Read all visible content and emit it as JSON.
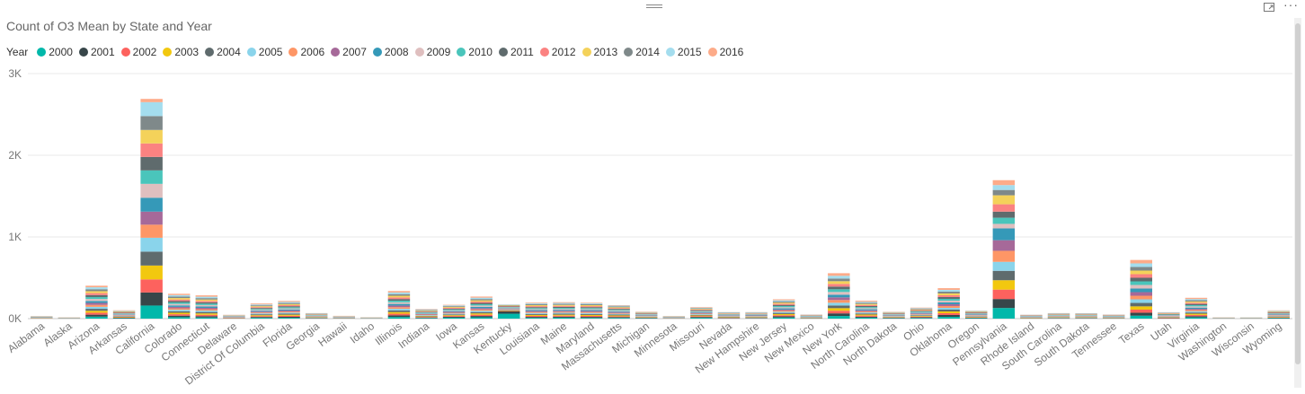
{
  "header": {
    "title": "Count of O3 Mean by State and Year",
    "more_label": "···"
  },
  "legend": {
    "title": "Year",
    "items": [
      {
        "label": "2000",
        "color": "#01B8AA"
      },
      {
        "label": "2001",
        "color": "#374649"
      },
      {
        "label": "2002",
        "color": "#FD625E"
      },
      {
        "label": "2003",
        "color": "#F2C80F"
      },
      {
        "label": "2004",
        "color": "#5F6B6D"
      },
      {
        "label": "2005",
        "color": "#8AD4EB"
      },
      {
        "label": "2006",
        "color": "#FE9666"
      },
      {
        "label": "2007",
        "color": "#A66999"
      },
      {
        "label": "2008",
        "color": "#3599B8"
      },
      {
        "label": "2009",
        "color": "#DFBFBF"
      },
      {
        "label": "2010",
        "color": "#4AC5BB"
      },
      {
        "label": "2011",
        "color": "#5F6B6D"
      },
      {
        "label": "2012",
        "color": "#FB8281"
      },
      {
        "label": "2013",
        "color": "#F4D25A"
      },
      {
        "label": "2014",
        "color": "#7F898A"
      },
      {
        "label": "2015",
        "color": "#A4DDEE"
      },
      {
        "label": "2016",
        "color": "#FDAB89"
      }
    ]
  },
  "chart_data": {
    "type": "bar",
    "stacked": true,
    "title": "Count of O3 Mean by State and Year",
    "xlabel": "",
    "ylabel": "",
    "ylim": [
      0,
      3000
    ],
    "yticks": [
      0,
      1000,
      2000,
      3000
    ],
    "ytick_labels": [
      "0K",
      "1K",
      "2K",
      "3K"
    ],
    "grid": true,
    "legend_position": "top-left",
    "categories": [
      "Alabama",
      "Alaska",
      "Arizona",
      "Arkansas",
      "California",
      "Colorado",
      "Connecticut",
      "Delaware",
      "District Of Columbia",
      "Florida",
      "Georgia",
      "Hawaii",
      "Idaho",
      "Illinois",
      "Indiana",
      "Iowa",
      "Kansas",
      "Kentucky",
      "Louisiana",
      "Maine",
      "Maryland",
      "Massachusetts",
      "Michigan",
      "Minnesota",
      "Missouri",
      "Nevada",
      "New Hampshire",
      "New Jersey",
      "New Mexico",
      "New York",
      "North Carolina",
      "North Dakota",
      "Ohio",
      "Oklahoma",
      "Oregon",
      "Pennsylvania",
      "Rhode Island",
      "South Carolina",
      "South Dakota",
      "Tennessee",
      "Texas",
      "Utah",
      "Virginia",
      "Washington",
      "Wisconsin",
      "Wyoming"
    ],
    "series": [
      {
        "name": "2000",
        "values": [
          0,
          0,
          24,
          5,
          160,
          18,
          14,
          0,
          10,
          10,
          4,
          2,
          1,
          20,
          7,
          12,
          16,
          60,
          10,
          12,
          9,
          9,
          5,
          1,
          10,
          3,
          4,
          14,
          3,
          32,
          12,
          5,
          8,
          22,
          6,
          130,
          2,
          4,
          4,
          3,
          36,
          0,
          15,
          0,
          0,
          6
        ]
      },
      {
        "name": "2001",
        "values": [
          2,
          1,
          24,
          6,
          160,
          18,
          16,
          3,
          10,
          12,
          4,
          2,
          1,
          20,
          7,
          10,
          16,
          28,
          11,
          12,
          12,
          10,
          5,
          2,
          10,
          4,
          4,
          14,
          3,
          32,
          12,
          5,
          8,
          22,
          6,
          110,
          3,
          4,
          4,
          3,
          36,
          5,
          15,
          1,
          1,
          6
        ]
      },
      {
        "name": "2002",
        "values": [
          2,
          1,
          24,
          6,
          160,
          18,
          17,
          3,
          11,
          13,
          4,
          2,
          1,
          20,
          7,
          10,
          16,
          6,
          12,
          12,
          12,
          10,
          5,
          2,
          10,
          5,
          5,
          14,
          3,
          32,
          13,
          5,
          8,
          22,
          6,
          115,
          3,
          4,
          4,
          3,
          38,
          5,
          15,
          1,
          1,
          6
        ]
      },
      {
        "name": "2003",
        "values": [
          2,
          1,
          24,
          6,
          170,
          18,
          17,
          3,
          11,
          13,
          4,
          2,
          1,
          20,
          7,
          10,
          16,
          6,
          12,
          12,
          12,
          10,
          5,
          2,
          8,
          5,
          5,
          14,
          3,
          32,
          13,
          5,
          8,
          22,
          6,
          115,
          3,
          4,
          4,
          3,
          40,
          5,
          15,
          1,
          1,
          6
        ]
      },
      {
        "name": "2004",
        "values": [
          2,
          1,
          24,
          6,
          170,
          18,
          17,
          3,
          11,
          13,
          4,
          2,
          1,
          20,
          7,
          10,
          16,
          6,
          12,
          12,
          12,
          10,
          5,
          2,
          8,
          5,
          5,
          14,
          3,
          33,
          13,
          5,
          8,
          22,
          6,
          115,
          3,
          4,
          4,
          3,
          42,
          5,
          15,
          1,
          1,
          6
        ]
      },
      {
        "name": "2005",
        "values": [
          2,
          1,
          24,
          6,
          170,
          18,
          17,
          3,
          11,
          13,
          4,
          2,
          1,
          20,
          7,
          10,
          16,
          6,
          12,
          12,
          12,
          10,
          5,
          2,
          8,
          5,
          5,
          14,
          3,
          33,
          13,
          5,
          8,
          22,
          6,
          110,
          3,
          4,
          4,
          3,
          44,
          5,
          15,
          1,
          1,
          6
        ]
      },
      {
        "name": "2006",
        "values": [
          2,
          1,
          24,
          6,
          160,
          18,
          17,
          3,
          11,
          13,
          4,
          2,
          1,
          20,
          7,
          10,
          16,
          6,
          12,
          12,
          12,
          10,
          5,
          2,
          8,
          5,
          5,
          14,
          3,
          33,
          13,
          5,
          8,
          22,
          6,
          135,
          3,
          4,
          4,
          3,
          44,
          5,
          15,
          1,
          1,
          6
        ]
      },
      {
        "name": "2007",
        "values": [
          2,
          1,
          24,
          6,
          160,
          18,
          17,
          3,
          11,
          13,
          4,
          2,
          1,
          20,
          7,
          10,
          16,
          6,
          12,
          12,
          12,
          10,
          5,
          2,
          8,
          5,
          5,
          14,
          3,
          33,
          13,
          5,
          8,
          22,
          6,
          130,
          3,
          4,
          4,
          3,
          44,
          5,
          15,
          1,
          1,
          6
        ]
      },
      {
        "name": "2008",
        "values": [
          2,
          1,
          24,
          6,
          170,
          18,
          17,
          3,
          11,
          13,
          4,
          2,
          1,
          20,
          7,
          10,
          16,
          6,
          12,
          12,
          12,
          10,
          5,
          2,
          8,
          5,
          5,
          14,
          3,
          33,
          13,
          5,
          8,
          22,
          6,
          145,
          3,
          4,
          4,
          3,
          44,
          5,
          15,
          1,
          1,
          6
        ]
      },
      {
        "name": "2009",
        "values": [
          2,
          1,
          24,
          6,
          170,
          18,
          17,
          3,
          11,
          13,
          4,
          2,
          1,
          20,
          7,
          10,
          16,
          6,
          12,
          12,
          12,
          10,
          5,
          2,
          8,
          5,
          5,
          14,
          3,
          33,
          13,
          5,
          8,
          22,
          6,
          55,
          3,
          4,
          4,
          3,
          44,
          5,
          15,
          1,
          1,
          6
        ]
      },
      {
        "name": "2010",
        "values": [
          2,
          1,
          24,
          6,
          165,
          18,
          17,
          3,
          11,
          13,
          4,
          2,
          1,
          20,
          7,
          10,
          16,
          6,
          12,
          12,
          12,
          10,
          5,
          2,
          8,
          5,
          5,
          14,
          3,
          33,
          13,
          5,
          8,
          22,
          6,
          75,
          3,
          4,
          4,
          3,
          44,
          5,
          15,
          1,
          1,
          6
        ]
      },
      {
        "name": "2011",
        "values": [
          2,
          1,
          24,
          6,
          165,
          18,
          17,
          3,
          11,
          13,
          4,
          2,
          1,
          20,
          7,
          10,
          16,
          6,
          12,
          12,
          12,
          10,
          5,
          2,
          8,
          5,
          5,
          14,
          3,
          33,
          13,
          5,
          8,
          22,
          6,
          75,
          3,
          4,
          4,
          3,
          44,
          5,
          15,
          1,
          1,
          6
        ]
      },
      {
        "name": "2012",
        "values": [
          2,
          1,
          24,
          6,
          165,
          18,
          17,
          3,
          11,
          13,
          4,
          2,
          1,
          20,
          7,
          10,
          16,
          6,
          12,
          12,
          12,
          10,
          5,
          2,
          8,
          5,
          5,
          14,
          3,
          33,
          13,
          5,
          8,
          22,
          6,
          90,
          3,
          4,
          4,
          3,
          44,
          5,
          15,
          1,
          1,
          6
        ]
      },
      {
        "name": "2013",
        "values": [
          2,
          1,
          24,
          6,
          165,
          18,
          17,
          3,
          11,
          13,
          4,
          2,
          1,
          20,
          7,
          10,
          16,
          6,
          12,
          12,
          12,
          10,
          5,
          2,
          8,
          5,
          5,
          14,
          3,
          33,
          13,
          5,
          8,
          22,
          6,
          110,
          3,
          4,
          4,
          3,
          44,
          5,
          15,
          1,
          1,
          6
        ]
      },
      {
        "name": "2014",
        "values": [
          2,
          1,
          24,
          6,
          170,
          18,
          17,
          3,
          11,
          13,
          4,
          2,
          1,
          20,
          7,
          10,
          16,
          6,
          12,
          12,
          12,
          10,
          5,
          2,
          8,
          5,
          5,
          14,
          3,
          33,
          13,
          5,
          8,
          22,
          6,
          65,
          3,
          4,
          4,
          3,
          44,
          5,
          15,
          1,
          1,
          6
        ]
      },
      {
        "name": "2015",
        "values": [
          2,
          1,
          24,
          6,
          170,
          18,
          17,
          3,
          11,
          13,
          4,
          2,
          1,
          20,
          7,
          10,
          16,
          6,
          12,
          12,
          12,
          10,
          5,
          2,
          8,
          5,
          5,
          14,
          3,
          33,
          13,
          5,
          8,
          22,
          6,
          60,
          3,
          4,
          4,
          3,
          44,
          5,
          15,
          1,
          1,
          6
        ]
      },
      {
        "name": "2016",
        "values": [
          1,
          1,
          19,
          7,
          40,
          16,
          17,
          2,
          11,
          12,
          3,
          2,
          1,
          18,
          5,
          7,
          14,
          2,
          8,
          9,
          7,
          6,
          5,
          1,
          7,
          2,
          2,
          12,
          3,
          32,
          13,
          4,
          7,
          21,
          3,
          60,
          2,
          3,
          2,
          3,
          42,
          3,
          15,
          1,
          0,
          5
        ]
      }
    ]
  }
}
